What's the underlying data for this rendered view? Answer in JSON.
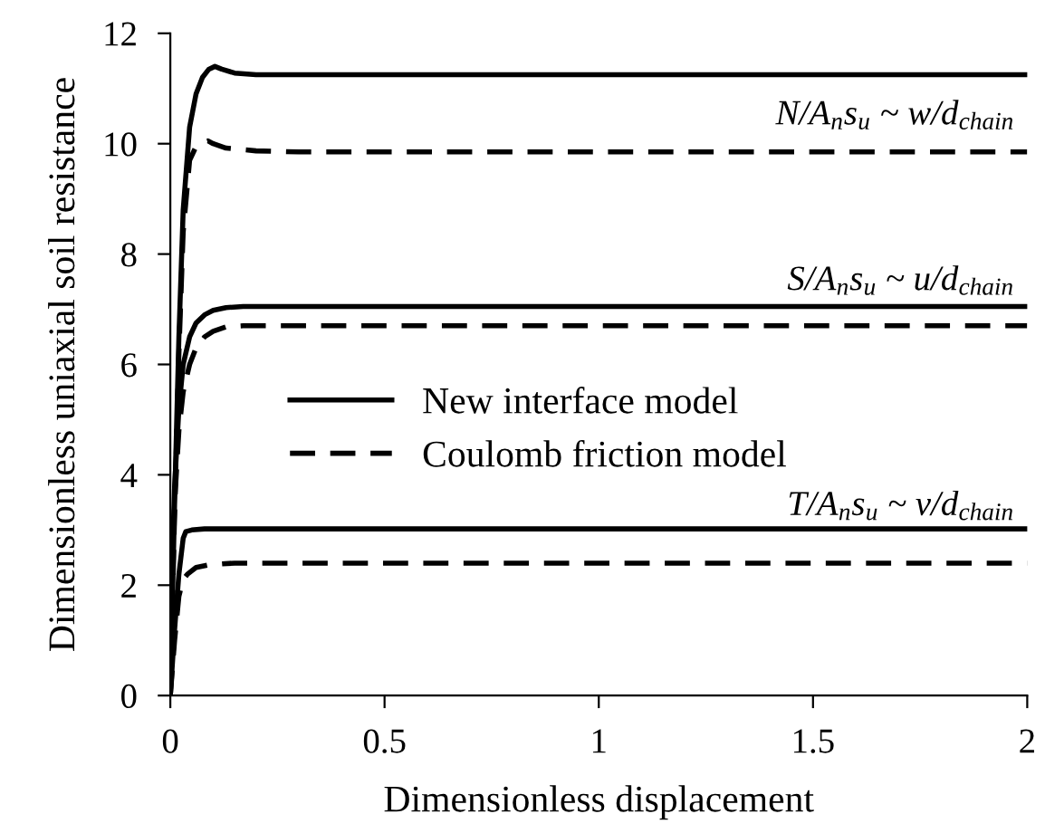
{
  "chart_data": {
    "type": "line",
    "xlabel": "Dimensionless displacement",
    "ylabel": "Dimensionless uniaxial soil resistance",
    "xlim": [
      0,
      2
    ],
    "ylim": [
      0,
      12
    ],
    "xticks": [
      0,
      {
        "value": 0.5,
        "label": "0.5"
      },
      {
        "value": 1,
        "label": "1"
      },
      {
        "value": 1.5,
        "label": "1.5"
      },
      {
        "value": 2,
        "label": "2"
      }
    ],
    "yticks": [
      0,
      2,
      4,
      6,
      8,
      10,
      12
    ],
    "grid": false,
    "legend": "left",
    "marker": "none",
    "series": [
      {
        "name": "New interface model",
        "color": "#000000",
        "line_style": "solid",
        "x": [
          0,
          0.01,
          0.02,
          0.03,
          0.045,
          0.06,
          0.075,
          0.09,
          0.104,
          0.12,
          0.15,
          0.2,
          0.3,
          2
        ],
        "values": [
          0,
          3.5,
          6.5,
          8.8,
          10.3,
          10.9,
          11.2,
          11.35,
          11.4,
          11.35,
          11.28,
          11.25,
          11.25,
          11.25
        ]
      },
      {
        "name": "Coulomb friction model",
        "color": "#000000",
        "line_style": "dashed",
        "x": [
          0,
          0.01,
          0.02,
          0.03,
          0.045,
          0.06,
          0.075,
          0.088,
          0.1,
          0.13,
          0.2,
          0.3,
          2
        ],
        "values": [
          0,
          3.3,
          6.2,
          8.4,
          9.7,
          9.95,
          10.02,
          10.05,
          10.0,
          9.92,
          9.87,
          9.85,
          9.85
        ]
      },
      {
        "color": "#000000",
        "line_style": "solid",
        "x": [
          0,
          0.005,
          0.01,
          0.02,
          0.03,
          0.045,
          0.06,
          0.08,
          0.1,
          0.13,
          0.17,
          0.25,
          2
        ],
        "values": [
          0,
          2.5,
          3.8,
          5.2,
          6.0,
          6.5,
          6.75,
          6.9,
          6.98,
          7.03,
          7.05,
          7.05,
          7.05
        ]
      },
      {
        "color": "#000000",
        "line_style": "dashed",
        "x": [
          0,
          0.005,
          0.01,
          0.02,
          0.03,
          0.045,
          0.06,
          0.08,
          0.1,
          0.13,
          0.17,
          0.25,
          2
        ],
        "values": [
          0,
          2.3,
          3.5,
          4.8,
          5.5,
          6.0,
          6.3,
          6.5,
          6.6,
          6.68,
          6.7,
          6.7,
          6.7
        ]
      },
      {
        "color": "#000000",
        "line_style": "solid",
        "x": [
          0,
          0.01,
          0.02,
          0.03,
          0.036,
          0.05,
          0.08,
          0.15,
          2
        ],
        "values": [
          0,
          1.2,
          2.2,
          2.85,
          2.97,
          3.0,
          3.02,
          3.02,
          3.02
        ]
      },
      {
        "color": "#000000",
        "line_style": "dashed",
        "x": [
          0,
          0.01,
          0.02,
          0.03,
          0.04,
          0.06,
          0.09,
          0.15,
          0.25,
          2
        ],
        "values": [
          0,
          1.0,
          1.8,
          2.1,
          2.2,
          2.32,
          2.37,
          2.4,
          2.4,
          2.4
        ]
      }
    ],
    "annotations": [
      "N/A$_{n}$s$_{u}$ ~ w/d$_{chain}$",
      "S/A$_{n}$s$_{u}$ ~ u/d$_{chain}$",
      "T/A$_{n}$s$_{u}$ ~ v/d$_{chain}$"
    ]
  }
}
